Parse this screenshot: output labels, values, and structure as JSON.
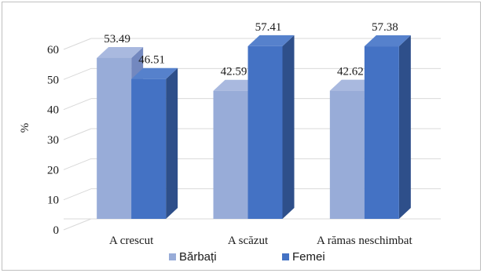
{
  "chart_data": {
    "type": "bar",
    "categories": [
      "A crescut",
      "A scăzut",
      "A rămas neschimbat"
    ],
    "series": [
      {
        "name": "Bărbați",
        "values": [
          53.49,
          42.59,
          42.62
        ],
        "color": "#98acd8",
        "top": "#a9b9df",
        "side": "#7388bf"
      },
      {
        "name": "Femei",
        "values": [
          46.51,
          57.41,
          57.38
        ],
        "color": "#4472c4",
        "top": "#5681cc",
        "side": "#2e4f8a"
      }
    ],
    "data_labels": [
      [
        "53.49",
        "42.59",
        "42.62"
      ],
      [
        "46.51",
        "57.41",
        "57.38"
      ]
    ],
    "title": "",
    "xlabel": "",
    "ylabel": "%",
    "ylim": [
      0,
      60
    ],
    "yticks": [
      "0",
      "10",
      "20",
      "30",
      "40",
      "50",
      "60"
    ],
    "grid": true,
    "legend": "bottom",
    "style": "3d-column"
  }
}
